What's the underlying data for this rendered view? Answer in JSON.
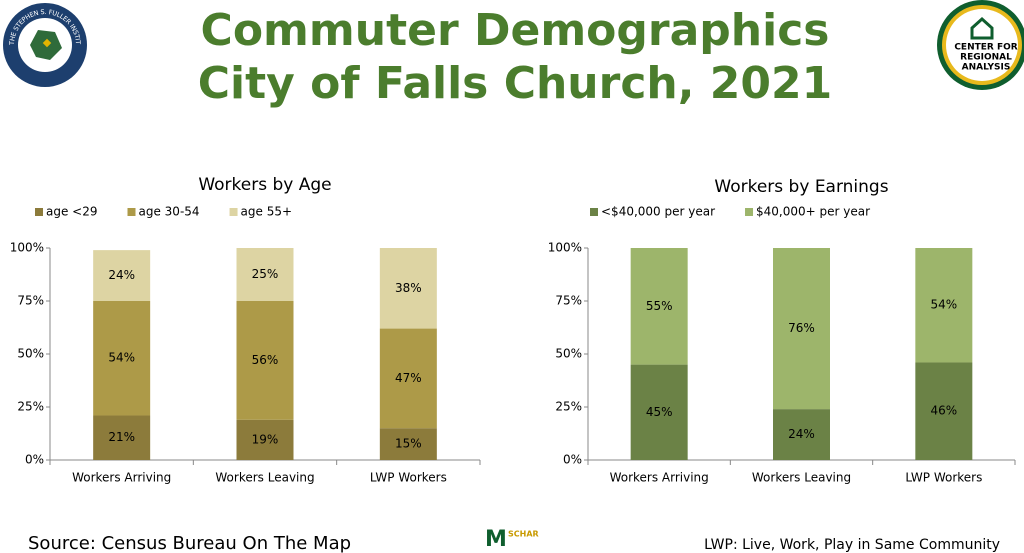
{
  "header": {
    "title_lines": [
      "Commuter Demographics",
      "City of Falls Church, 2021"
    ],
    "left_logo": "THE STEPHEN S. FULLER INSTITUTE",
    "right_logo_lines": [
      "CENTER FOR",
      "REGIONAL",
      "ANALYSIS"
    ]
  },
  "chart_data": [
    {
      "type": "stacked_bar",
      "title": "Workers by Age",
      "categories": [
        "Workers Arriving",
        "Workers Leaving",
        "LWP Workers"
      ],
      "series": [
        {
          "name": "age <29",
          "color": "#8c7b3b",
          "values": [
            21,
            19,
            15
          ],
          "value_labels": [
            "21%",
            "19%",
            "15%"
          ]
        },
        {
          "name": "age 30-54",
          "color": "#ad9a48",
          "values": [
            54,
            56,
            47
          ],
          "value_labels": [
            "54%",
            "56%",
            "47%"
          ]
        },
        {
          "name": "age 55+",
          "color": "#ddd4a3",
          "values": [
            24,
            25,
            38
          ],
          "value_labels": [
            "24%",
            "25%",
            "38%"
          ]
        }
      ],
      "ylim": [
        0,
        100
      ],
      "yticks": [
        {
          "value": 0,
          "label": "0%"
        },
        {
          "value": 25,
          "label": "25%"
        },
        {
          "value": 50,
          "label": "50%"
        },
        {
          "value": 75,
          "label": "75%"
        },
        {
          "value": 100,
          "label": "100%"
        }
      ],
      "grid": false,
      "legend": "top-left"
    },
    {
      "type": "stacked_bar",
      "title": "Workers by Earnings",
      "categories": [
        "Workers Arriving",
        "Workers Leaving",
        "LWP Workers"
      ],
      "series": [
        {
          "name": "<$40,000 per year",
          "color": "#6b8246",
          "values": [
            45,
            24,
            46
          ],
          "value_labels": [
            "45%",
            "24%",
            "46%"
          ]
        },
        {
          "name": "$40,000+ per year",
          "color": "#9db56b",
          "values": [
            55,
            76,
            54
          ],
          "value_labels": [
            "55%",
            "76%",
            "54%"
          ]
        }
      ],
      "ylim": [
        0,
        100
      ],
      "yticks": [
        {
          "value": 0,
          "label": "0%"
        },
        {
          "value": 25,
          "label": "25%"
        },
        {
          "value": 50,
          "label": "50%"
        },
        {
          "value": 75,
          "label": "75%"
        },
        {
          "value": 100,
          "label": "100%"
        }
      ],
      "grid": false,
      "legend": "top-left"
    }
  ],
  "footer": {
    "source": "Source: Census Bureau On The Map",
    "logo": "SCHAR",
    "note": "LWP: Live, Work, Play in Same Community"
  }
}
